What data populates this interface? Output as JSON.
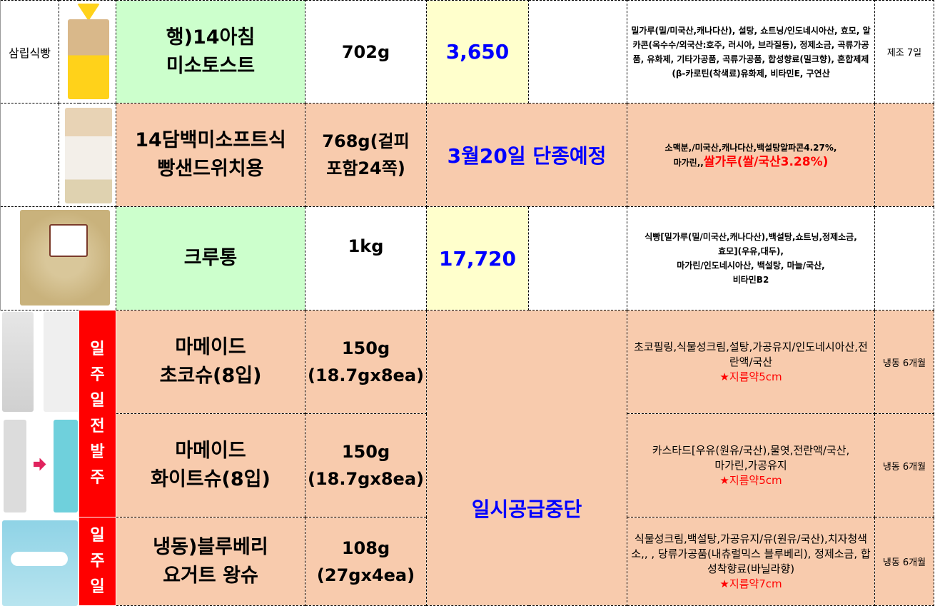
{
  "colors": {
    "name_green": "#ccffcc",
    "price_yellow": "#ffffcc",
    "peach": "#f8cbad",
    "price_blue": "#0000ff",
    "alert_red": "#ff0000"
  },
  "rows": [
    {
      "brand": "삼립식빵",
      "image": "toast-bread-package",
      "name": [
        "행)14아침",
        "미소토스트"
      ],
      "weight": [
        "702g"
      ],
      "price": "3,650",
      "ingredients": [
        "밀가루(밀/미국산,캐나다산), 설탕, 쇼트닝/인도네시아산, 효모, 알카콘(옥수수/외국산:호주, 러시아, 브라질등), 정제소금, 곡류가공품, 유화제, 기타가공품, 곡류가공품, 합성향료(밀크향), 혼합제제(β-카로틴(착색료)유화제, 비타민E, 구연산"
      ],
      "shelf": "제조 7일"
    },
    {
      "brand": "",
      "image": "protein-bread-package",
      "name": [
        "14담백미소프트식",
        "빵샌드위치용"
      ],
      "weight": [
        "768g(겉피",
        "포함24쪽)"
      ],
      "price": "3월20일 단종예정",
      "ingredients": [
        "소맥분,/미국산,캐나다산,백설탕알파콘4.27%,",
        "마가린,,"
      ],
      "ingredients_highlight": "쌀가루(쌀/국산3.28%)",
      "shelf": ""
    },
    {
      "brand": "",
      "image": "crouton-bag",
      "name": [
        "크루통"
      ],
      "weight": [
        "1kg"
      ],
      "price": "17,720",
      "ingredients": [
        "식빵[밀가루(밀/미국산,캐나다산),백설탕,쇼트닝,정제소금,",
        "효모](우유,대두),",
        "마가린/인도네시아산, 백설탕, 마늘/국산,",
        "비타민B2"
      ],
      "shelf": ""
    },
    {
      "brand": "",
      "image": "choco-choux-package",
      "name": [
        "마메이드",
        "초코슈(8입)"
      ],
      "weight": [
        "150g",
        "(18.7gx8ea)"
      ],
      "ingredients": [
        "초코필링,식물성크림,설탕,가공유지/인도네시아산,전란액/국산"
      ],
      "note": "★지름약5cm",
      "shelf": "냉동 6개월"
    },
    {
      "brand": "",
      "image": "white-choux-package",
      "name": [
        "마메이드",
        "화이트슈(8입)"
      ],
      "weight": [
        "150g",
        "(18.7gx8ea)"
      ],
      "ingredients": [
        "카스타드[우유(원유/국산),물엿,전란액/국산,",
        "마가린,가공유지"
      ],
      "note": "★지름약5cm",
      "shelf": "냉동 6개월"
    },
    {
      "brand": "",
      "image": "blueberry-choux-package",
      "name": [
        "냉동)블루베리",
        "요거트 왕슈"
      ],
      "weight": [
        "108g",
        "(27gx4ea)"
      ],
      "ingredients": [
        "식물성크림,백설탕,가공유지/유(원유/국산),치자청색소,, , 당류가공품(내츄럴믹스 블루베리), 정제소금, 합성착향료(바닐라향)"
      ],
      "note": "★지름약7cm",
      "shelf": "냉동 6개월"
    }
  ],
  "suspended_price": "일시공급중단",
  "order_badges": [
    [
      "일",
      "주",
      "일",
      "전",
      "발",
      "주"
    ],
    [
      "일",
      "주",
      "일"
    ]
  ]
}
